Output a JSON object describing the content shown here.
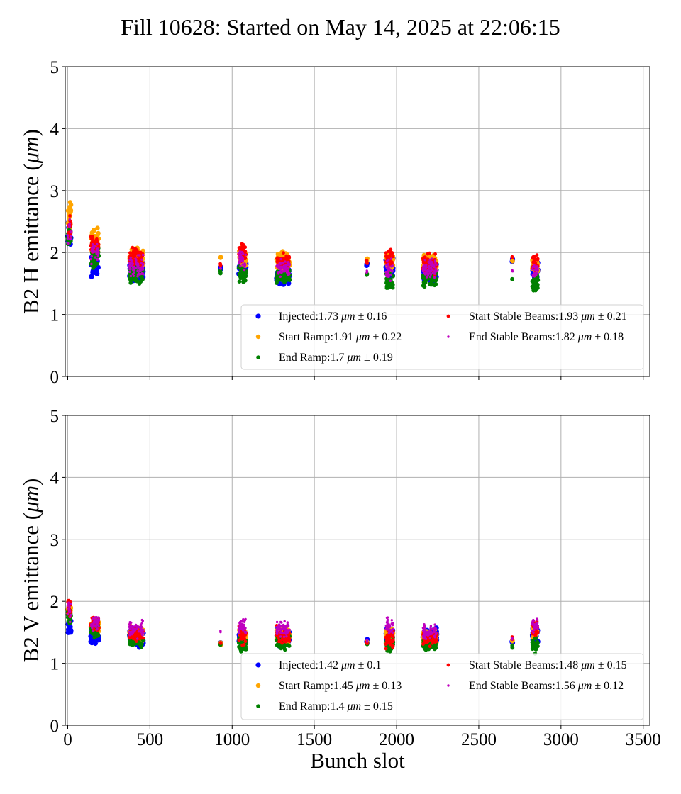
{
  "title": "Fill 10628: Started on May 14, 2025 at 22:06:15",
  "colors": {
    "Injected": "#0000ff",
    "Start Ramp": "#ffa500",
    "End Ramp": "#008000",
    "Start Stable Beams": "#ff0000",
    "End Stable Beams": "#bf00bf",
    "grid": "#b0b0b0"
  },
  "xlabel": "Bunch slot",
  "chart_data": [
    {
      "type": "scatter",
      "ylabel_text": "B2 H emittance (",
      "ylabel_unit": "μm",
      "ylabel_close": ")",
      "xlim": [
        -15,
        3540
      ],
      "ylim": [
        0,
        5
      ],
      "xticks": [
        0,
        500,
        1000,
        1500,
        2000,
        2500,
        3000,
        3500
      ],
      "xtick_labels_visible": false,
      "yticks": [
        0,
        1,
        2,
        3,
        4,
        5
      ],
      "grid": true,
      "legend_position": "lower-right",
      "legend": [
        {
          "name": "Injected",
          "mean": "1.73",
          "std": "0.16"
        },
        {
          "name": "Start Ramp",
          "mean": "1.91",
          "std": "0.22"
        },
        {
          "name": "End Ramp",
          "mean": "1.7",
          "std": "0.19"
        },
        {
          "name": "Start Stable Beams",
          "mean": "1.93",
          "std": "0.21"
        },
        {
          "name": "End Stable Beams",
          "mean": "1.82",
          "std": "0.18"
        }
      ],
      "bunch_groups": [
        {
          "x": [
            0,
            20
          ],
          "levels": {
            "Injected": 2.25,
            "Start Ramp": 2.6,
            "End Ramp": 2.3,
            "Start Stable Beams": 2.45,
            "End Stable Beams": 2.35
          },
          "spread": 0.25
        },
        {
          "x": [
            140,
            190
          ],
          "levels": {
            "Injected": 1.8,
            "Start Ramp": 2.2,
            "End Ramp": 1.9,
            "Start Stable Beams": 2.15,
            "End Stable Beams": 2.0
          },
          "spread": 0.18
        },
        {
          "x": [
            375,
            460
          ],
          "levels": {
            "Injected": 1.7,
            "Start Ramp": 1.9,
            "End Ramp": 1.65,
            "Start Stable Beams": 1.92,
            "End Stable Beams": 1.78
          },
          "spread": 0.16
        },
        {
          "x": [
            928,
            932
          ],
          "levels": {
            "Injected": 1.75,
            "Start Ramp": 1.93,
            "End Ramp": 1.68,
            "Start Stable Beams": 1.8,
            "End Stable Beams": 1.75
          },
          "spread": 0.03
        },
        {
          "x": [
            1040,
            1085
          ],
          "levels": {
            "Injected": 1.75,
            "Start Ramp": 1.95,
            "End Ramp": 1.65,
            "Start Stable Beams": 2.0,
            "End Stable Beams": 1.85
          },
          "spread": 0.16
        },
        {
          "x": [
            1270,
            1350
          ],
          "levels": {
            "Injected": 1.65,
            "Start Ramp": 1.85,
            "End Ramp": 1.62,
            "Start Stable Beams": 1.85,
            "End Stable Beams": 1.75
          },
          "spread": 0.14
        },
        {
          "x": [
            1818,
            1822
          ],
          "levels": {
            "Injected": 1.82,
            "Start Ramp": 1.88,
            "End Ramp": 1.65,
            "Start Stable Beams": 1.85,
            "End Stable Beams": 1.7
          },
          "spread": 0.03
        },
        {
          "x": [
            1935,
            1980
          ],
          "levels": {
            "Injected": 1.75,
            "Start Ramp": 1.85,
            "End Ramp": 1.55,
            "Start Stable Beams": 1.9,
            "End Stable Beams": 1.75
          },
          "spread": 0.17
        },
        {
          "x": [
            2160,
            2245
          ],
          "levels": {
            "Injected": 1.7,
            "Start Ramp": 1.8,
            "End Ramp": 1.6,
            "Start Stable Beams": 1.82,
            "End Stable Beams": 1.75
          },
          "spread": 0.15
        },
        {
          "x": [
            2702,
            2706
          ],
          "levels": {
            "Injected": 1.87,
            "Start Ramp": 1.87,
            "End Ramp": 1.58,
            "Start Stable Beams": 1.93,
            "End Stable Beams": 1.72
          },
          "spread": 0.03
        },
        {
          "x": [
            2825,
            2860
          ],
          "levels": {
            "Injected": 1.7,
            "Start Ramp": 1.75,
            "End Ramp": 1.5,
            "Start Stable Beams": 1.85,
            "End Stable Beams": 1.7
          },
          "spread": 0.15
        }
      ]
    },
    {
      "type": "scatter",
      "ylabel_text": "B2 V emittance (",
      "ylabel_unit": "μm",
      "ylabel_close": ")",
      "xlim": [
        -15,
        3540
      ],
      "ylim": [
        0,
        5
      ],
      "xticks": [
        0,
        500,
        1000,
        1500,
        2000,
        2500,
        3000,
        3500
      ],
      "xtick_labels_visible": true,
      "yticks": [
        0,
        1,
        2,
        3,
        4,
        5
      ],
      "grid": true,
      "legend_position": "lower-right",
      "legend": [
        {
          "name": "Injected",
          "mean": "1.42",
          "std": "0.1"
        },
        {
          "name": "Start Ramp",
          "mean": "1.45",
          "std": "0.13"
        },
        {
          "name": "End Ramp",
          "mean": "1.4",
          "std": "0.15"
        },
        {
          "name": "Start Stable Beams",
          "mean": "1.48",
          "std": "0.15"
        },
        {
          "name": "End Stable Beams",
          "mean": "1.56",
          "std": "0.12"
        }
      ],
      "bunch_groups": [
        {
          "x": [
            0,
            20
          ],
          "levels": {
            "Injected": 1.6,
            "Start Ramp": 1.85,
            "End Ramp": 1.75,
            "Start Stable Beams": 1.9,
            "End Stable Beams": 1.85
          },
          "spread": 0.14
        },
        {
          "x": [
            140,
            190
          ],
          "levels": {
            "Injected": 1.45,
            "Start Ramp": 1.6,
            "End Ramp": 1.55,
            "Start Stable Beams": 1.65,
            "End Stable Beams": 1.65
          },
          "spread": 0.12
        },
        {
          "x": [
            375,
            460
          ],
          "levels": {
            "Injected": 1.38,
            "Start Ramp": 1.45,
            "End Ramp": 1.38,
            "Start Stable Beams": 1.48,
            "End Stable Beams": 1.55
          },
          "spread": 0.12
        },
        {
          "x": [
            928,
            932
          ],
          "levels": {
            "Injected": 1.32,
            "Start Ramp": 1.33,
            "End Ramp": 1.3,
            "Start Stable Beams": 1.32,
            "End Stable Beams": 1.52
          },
          "spread": 0.03
        },
        {
          "x": [
            1040,
            1085
          ],
          "levels": {
            "Injected": 1.4,
            "Start Ramp": 1.45,
            "End Ramp": 1.3,
            "Start Stable Beams": 1.45,
            "End Stable Beams": 1.6
          },
          "spread": 0.14
        },
        {
          "x": [
            1270,
            1350
          ],
          "levels": {
            "Injected": 1.42,
            "Start Ramp": 1.45,
            "End Ramp": 1.35,
            "Start Stable Beams": 1.45,
            "End Stable Beams": 1.55
          },
          "spread": 0.13
        },
        {
          "x": [
            1818,
            1822
          ],
          "levels": {
            "Injected": 1.35,
            "Start Ramp": 1.34,
            "End Ramp": 1.3,
            "Start Stable Beams": 1.33,
            "End Stable Beams": 1.36
          },
          "spread": 0.03
        },
        {
          "x": [
            1935,
            1980
          ],
          "levels": {
            "Injected": 1.42,
            "Start Ramp": 1.45,
            "End Ramp": 1.3,
            "Start Stable Beams": 1.4,
            "End Stable Beams": 1.6
          },
          "spread": 0.14
        },
        {
          "x": [
            2160,
            2245
          ],
          "levels": {
            "Injected": 1.45,
            "Start Ramp": 1.42,
            "End Ramp": 1.3,
            "Start Stable Beams": 1.4,
            "End Stable Beams": 1.5
          },
          "spread": 0.11
        },
        {
          "x": [
            2702,
            2706
          ],
          "levels": {
            "Injected": 1.35,
            "Start Ramp": 1.35,
            "End Ramp": 1.28,
            "Start Stable Beams": 1.4,
            "End Stable Beams": 1.4
          },
          "spread": 0.03
        },
        {
          "x": [
            2825,
            2860
          ],
          "levels": {
            "Injected": 1.45,
            "Start Ramp": 1.5,
            "End Ramp": 1.3,
            "Start Stable Beams": 1.55,
            "End Stable Beams": 1.58
          },
          "spread": 0.12
        }
      ]
    }
  ]
}
